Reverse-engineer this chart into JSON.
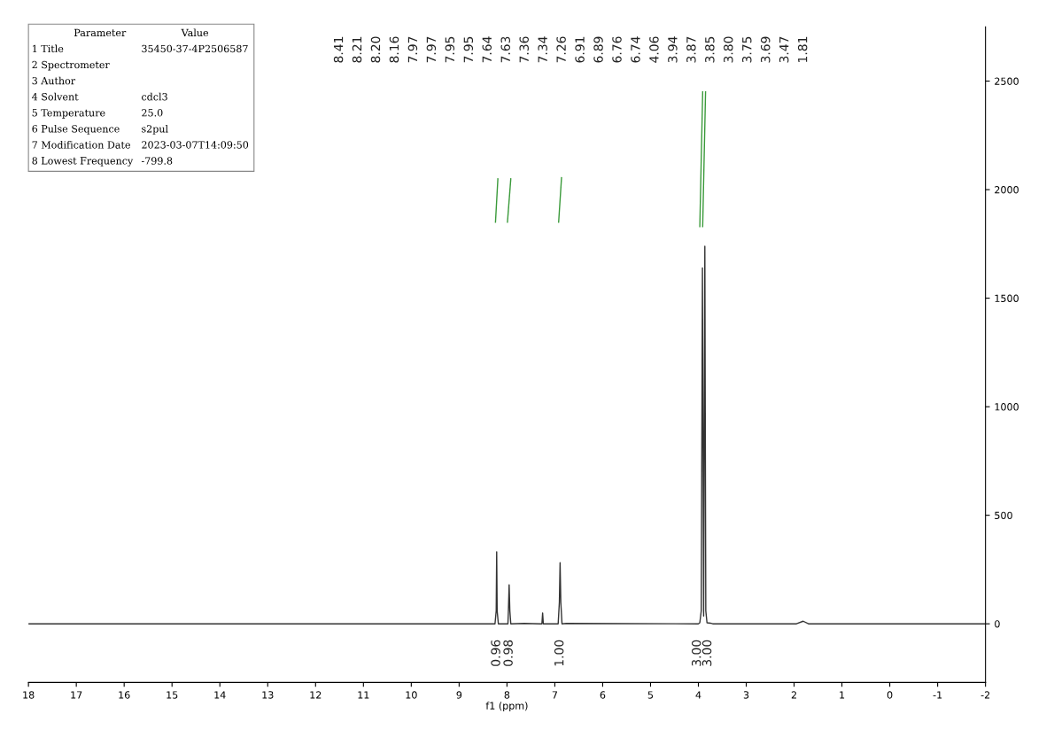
{
  "chart_data": {
    "type": "line",
    "xlabel": "f1 (ppm)",
    "xlim": [
      18,
      -2
    ],
    "xticks": [
      18,
      17,
      16,
      15,
      14,
      13,
      12,
      11,
      10,
      9,
      8,
      7,
      6,
      5,
      4,
      3,
      2,
      1,
      0,
      -1,
      -2
    ],
    "ylim": [
      -270,
      2750
    ],
    "yticks": [
      0,
      500,
      1000,
      1500,
      2000,
      2500
    ],
    "grid": false,
    "series": [
      {
        "color": "#333333",
        "x": [
          18,
          8.4,
          8.25,
          8.225,
          8.215,
          8.205,
          8.18,
          7.98,
          7.97,
          7.955,
          7.94,
          7.92,
          7.64,
          7.3,
          7.27,
          7.255,
          7.24,
          6.93,
          6.905,
          6.89,
          6.875,
          6.85,
          6.76,
          4.0,
          3.97,
          3.94,
          3.915,
          3.89,
          3.865,
          3.845,
          3.82,
          3.75,
          3.7,
          1.95,
          1.81,
          1.7,
          -2
        ],
        "values": [
          0,
          0,
          0,
          60,
          332,
          60,
          0,
          0,
          60,
          180,
          60,
          0,
          2,
          0,
          0,
          50,
          0,
          0,
          100,
          282,
          100,
          0,
          2,
          0,
          5,
          60,
          1639,
          35,
          1739,
          60,
          5,
          3,
          0,
          0,
          12,
          0,
          0
        ]
      },
      {
        "color": "#3a9a3a",
        "x": [
          8.24,
          8.19
        ],
        "values": [
          1850,
          2050
        ]
      },
      {
        "color": "#3a9a3a",
        "x": [
          7.99,
          7.92
        ],
        "values": [
          1850,
          2050
        ]
      },
      {
        "color": "#3a9a3a",
        "x": [
          6.92,
          6.86
        ],
        "values": [
          1850,
          2055
        ]
      },
      {
        "color": "#3a9a3a",
        "x": [
          3.97,
          3.91
        ],
        "values": [
          1830,
          2450
        ]
      },
      {
        "color": "#3a9a3a",
        "x": [
          3.91,
          3.85
        ],
        "values": [
          1830,
          2450
        ]
      }
    ],
    "annotations": [
      "8.41",
      "8.21",
      "8.20",
      "8.16",
      "7.97",
      "7.97",
      "7.95",
      "7.95",
      "7.64",
      "7.63",
      "7.36",
      "7.34",
      "7.26",
      "6.91",
      "6.89",
      "6.76",
      "6.74",
      "4.06",
      "3.94",
      "3.87",
      "3.85",
      "3.80",
      "3.75",
      "3.69",
      "3.47",
      "1.81",
      "0.96",
      "0.98",
      "1.00",
      "3.00",
      "3.00",
      "Parameter\tValue",
      "1 Title\t35450-37-4P2506587",
      "2 Spectrometer",
      "3 Author",
      "4 Solvent\tcdcl3",
      "5 Temperature\t25.0",
      "6 Pulse Sequence\ts2pul",
      "7 Modification Date\t2023-03-07T14:09:50",
      "8 Lowest Frequency\t-799.8"
    ]
  }
}
